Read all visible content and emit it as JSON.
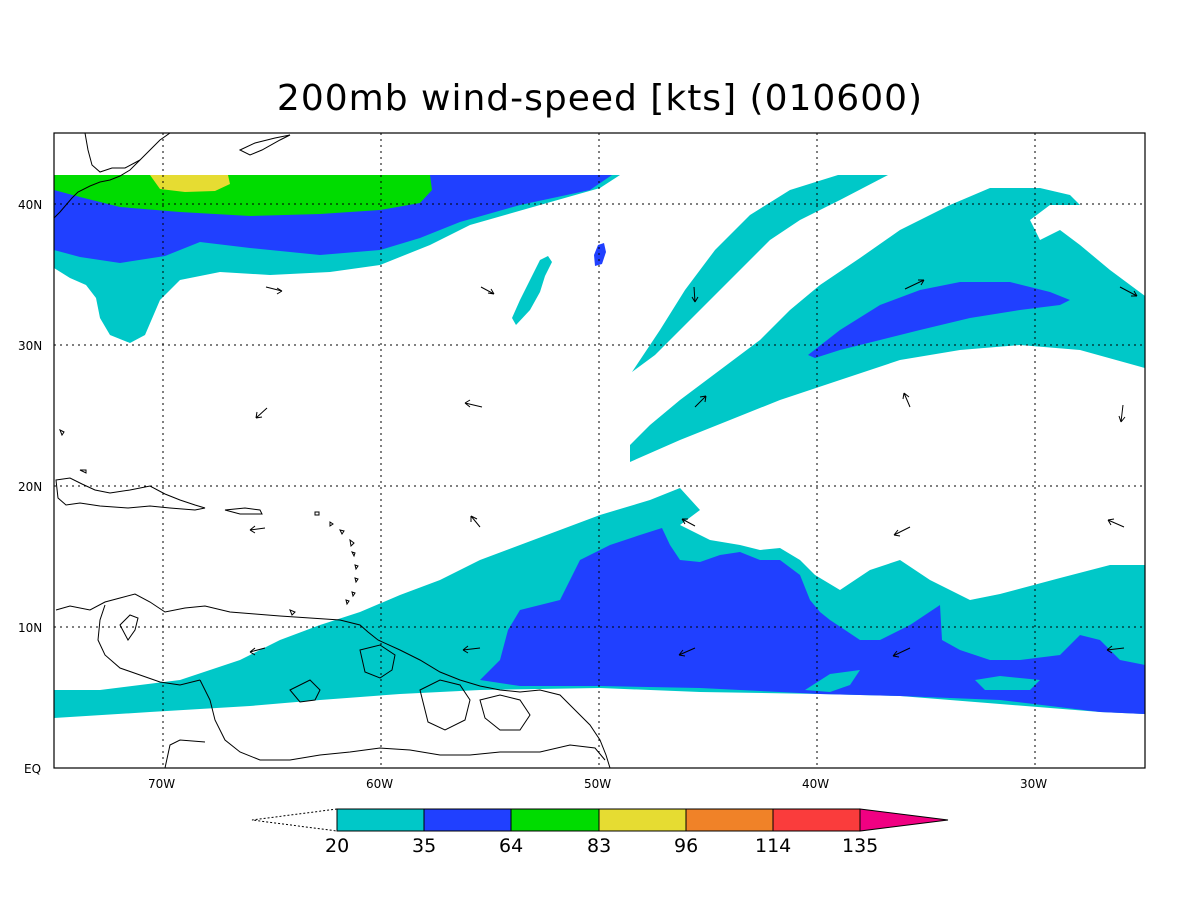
{
  "title": "200mb wind-speed [kts] (010600)",
  "map": {
    "lon_range": [
      -75,
      -25
    ],
    "lat_range": [
      0,
      45
    ],
    "lon_ticks": [
      "70W",
      "60W",
      "50W",
      "40W",
      "30W"
    ],
    "lat_ticks": [
      "EQ",
      "10N",
      "20N",
      "30N",
      "40N"
    ],
    "grid": "dotted",
    "regions": [
      {
        "name": "Atlantic / Caribbean"
      }
    ]
  },
  "colorbar": {
    "levels": [
      "20",
      "35",
      "64",
      "83",
      "96",
      "114",
      "135"
    ],
    "colors": [
      "#00c8c8",
      "#2040ff",
      "#00dc00",
      "#e6dc32",
      "#f08228",
      "#fa3c3c",
      "#f00082"
    ],
    "under": "white",
    "units": "kts"
  },
  "fills": {
    "c20": "#00c8c8",
    "c35": "#2040ff",
    "c64": "#00dc00",
    "c83": "#e6dc32"
  }
}
